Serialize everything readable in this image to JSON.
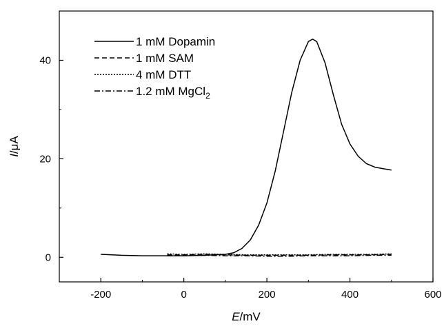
{
  "chart_data": {
    "type": "line",
    "title": "",
    "xlabel_italic": "E",
    "xlabel_unit": "/mV",
    "ylabel_italic": "I",
    "ylabel_unit": "/μA",
    "xlim": [
      -300,
      600
    ],
    "ylim": [
      -5,
      50
    ],
    "xticks": [
      -200,
      0,
      200,
      400,
      600
    ],
    "yticks": [
      0,
      20,
      40
    ],
    "grid": false,
    "legend_position": "top-left",
    "series": [
      {
        "name": "1 mM Dopamin",
        "dash": "solid",
        "x": [
          -200,
          -150,
          -100,
          -50,
          0,
          50,
          100,
          120,
          140,
          160,
          180,
          200,
          220,
          240,
          260,
          280,
          300,
          310,
          320,
          340,
          360,
          380,
          400,
          420,
          440,
          460,
          480,
          500
        ],
        "y": [
          0.6,
          0.4,
          0.3,
          0.3,
          0.3,
          0.4,
          0.6,
          0.9,
          1.8,
          3.5,
          6.5,
          11.0,
          17.5,
          25.5,
          33.5,
          40.0,
          43.8,
          44.3,
          43.8,
          39.5,
          33.0,
          27.0,
          23.0,
          20.5,
          19.0,
          18.3,
          18.0,
          17.7
        ]
      },
      {
        "name": "1 mM SAM",
        "dash": "dash",
        "x": [
          -40,
          0,
          50,
          100,
          150,
          200,
          250,
          300,
          350,
          400,
          450,
          500
        ],
        "y": [
          0.5,
          0.5,
          0.6,
          0.5,
          0.4,
          0.4,
          0.4,
          0.4,
          0.5,
          0.5,
          0.5,
          0.6
        ]
      },
      {
        "name": "4 mM DTT",
        "dash": "dot",
        "x": [
          -40,
          0,
          50,
          100,
          150,
          200,
          250,
          300,
          350,
          400,
          450,
          500
        ],
        "y": [
          0.7,
          0.6,
          0.7,
          0.6,
          0.5,
          0.5,
          0.5,
          0.5,
          0.6,
          0.6,
          0.6,
          0.7
        ]
      },
      {
        "name": "1.2 mM MgCl",
        "name_subscript": "2",
        "dash": "dashdot",
        "x": [
          -40,
          0,
          50,
          100,
          150,
          200,
          250,
          300,
          350,
          400,
          450,
          500
        ],
        "y": [
          0.3,
          0.3,
          0.4,
          0.3,
          0.3,
          0.2,
          0.2,
          0.3,
          0.3,
          0.3,
          0.4,
          0.4
        ]
      }
    ]
  }
}
